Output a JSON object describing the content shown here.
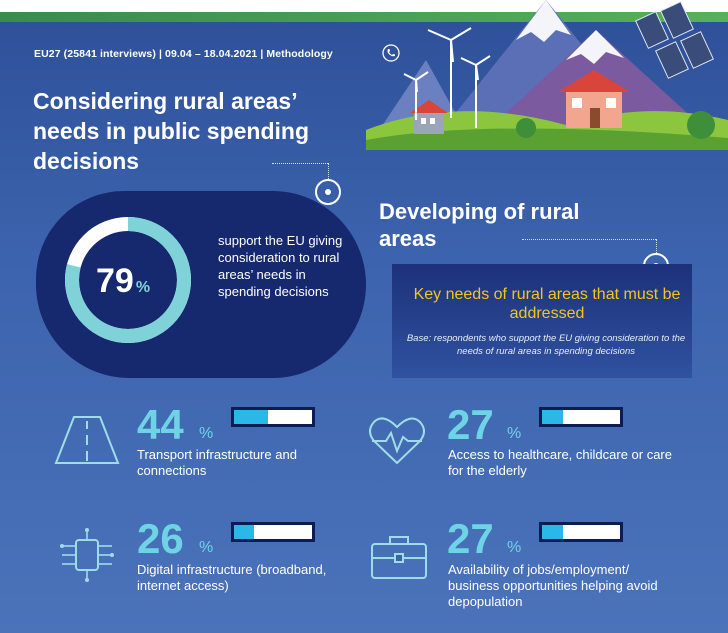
{
  "meta": "EU27 (25841 interviews) | 09.04 – 18.04.2021 | Methodology",
  "section1": {
    "title": "Considering rural areas’ needs in public spending decisions",
    "value": "79",
    "value_num": 79,
    "unit": "%",
    "description": "support the EU giving consideration to rural areas’ needs in spending decisions"
  },
  "section2": {
    "title": "Developing of rural areas",
    "key_title": "Key needs of rural areas that must be addressed",
    "base": "Base: respondents who support the EU giving consideration to the needs of rural areas in spending decisions"
  },
  "stats": [
    {
      "value": "44",
      "value_num": 44,
      "unit": "%",
      "label": "Transport infrastructure and connections",
      "icon": "road-icon"
    },
    {
      "value": "27",
      "value_num": 27,
      "unit": "%",
      "label": "Access to healthcare, childcare or care for the elderly",
      "icon": "heart-pulse-icon"
    },
    {
      "value": "26",
      "value_num": 26,
      "unit": "%",
      "label": "Digital infrastructure (broadband, internet access)",
      "icon": "circuit-icon"
    },
    {
      "value": "27",
      "value_num": 27,
      "unit": "%",
      "label": "Availability of jobs/employment/ business opportunities helping avoid depopulation",
      "icon": "briefcase-icon"
    }
  ],
  "colors": {
    "accent": "#6fd3e6",
    "highlight": "#f5c518",
    "bar_fill": "#2bb7e8",
    "panel": "#16286e"
  }
}
